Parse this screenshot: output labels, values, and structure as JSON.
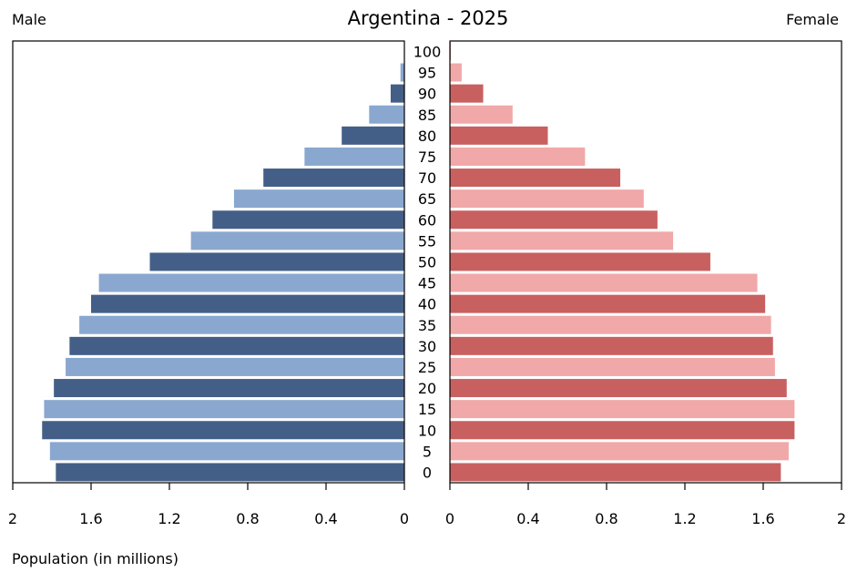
{
  "chart_data": {
    "type": "bar",
    "title": "Argentina - 2025",
    "left_label": "Male",
    "right_label": "Female",
    "xlabel": "Population (in millions)",
    "xlim": [
      0,
      2
    ],
    "x_ticks_left": [
      "2",
      "1.6",
      "1.2",
      "0.8",
      "0.4",
      "0"
    ],
    "x_ticks_right": [
      "0",
      "0.4",
      "0.8",
      "1.2",
      "1.6",
      "2"
    ],
    "age_groups": [
      "0",
      "5",
      "10",
      "15",
      "20",
      "25",
      "30",
      "35",
      "40",
      "45",
      "50",
      "55",
      "60",
      "65",
      "70",
      "75",
      "80",
      "85",
      "90",
      "95",
      "100"
    ],
    "series": [
      {
        "name": "Male",
        "values": [
          1.78,
          1.81,
          1.85,
          1.84,
          1.79,
          1.73,
          1.71,
          1.66,
          1.6,
          1.56,
          1.3,
          1.09,
          0.98,
          0.87,
          0.72,
          0.51,
          0.32,
          0.18,
          0.07,
          0.02,
          0.002
        ],
        "colors": [
          "#445f87",
          "#8aa8cf"
        ]
      },
      {
        "name": "Female",
        "values": [
          1.69,
          1.73,
          1.76,
          1.76,
          1.72,
          1.66,
          1.65,
          1.64,
          1.61,
          1.57,
          1.33,
          1.14,
          1.06,
          0.99,
          0.87,
          0.69,
          0.5,
          0.32,
          0.17,
          0.06,
          0.004
        ],
        "colors": [
          "#c96060",
          "#f0a8a8"
        ]
      }
    ]
  }
}
